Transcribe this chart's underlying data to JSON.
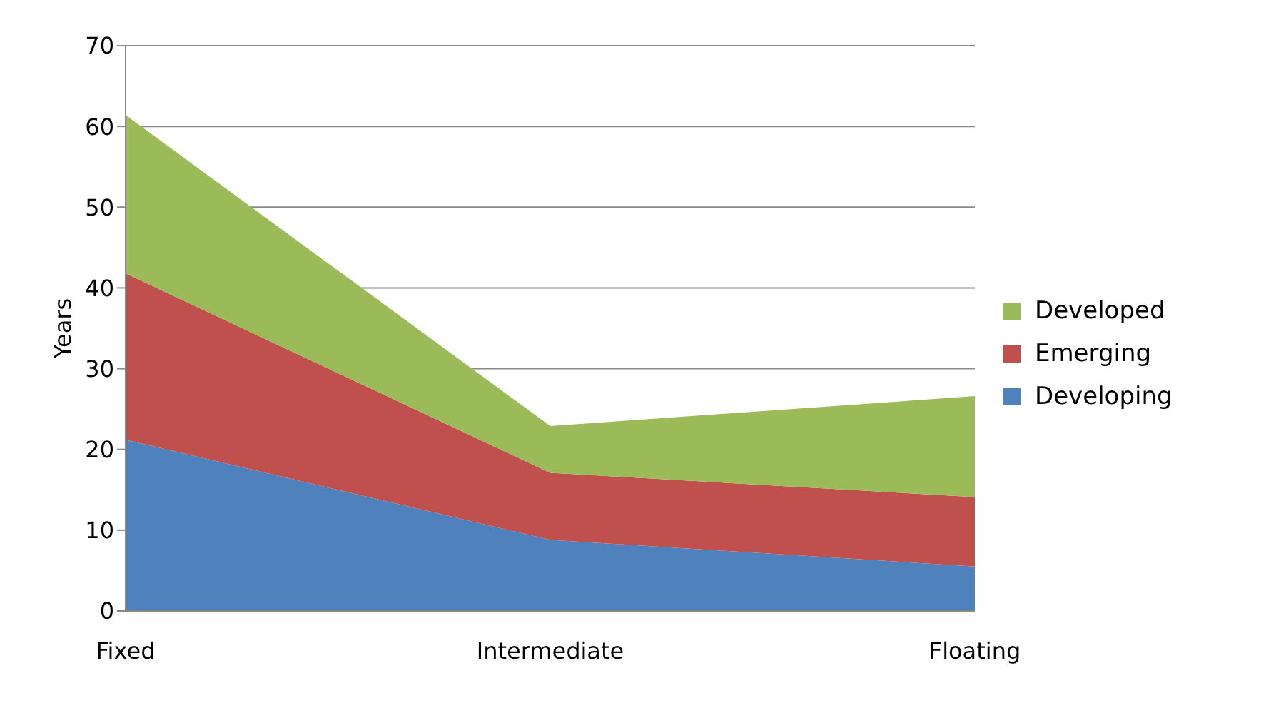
{
  "chart_data": {
    "type": "area",
    "stacked": true,
    "ylabel": "Years",
    "categories": [
      "Fixed",
      "Intermediate",
      "Floating"
    ],
    "series": [
      {
        "name": "Developing",
        "color": "#4f81bd",
        "values": [
          21.2,
          8.8,
          5.5
        ]
      },
      {
        "name": "Emerging",
        "color": "#c0504d",
        "values": [
          20.6,
          8.3,
          8.6
        ]
      },
      {
        "name": "Developed",
        "color": "#9bbb59",
        "values": [
          19.6,
          5.8,
          12.5
        ]
      }
    ],
    "ylim": [
      0,
      70
    ],
    "yticks": [
      0,
      10,
      20,
      30,
      40,
      50,
      60,
      70
    ],
    "grid": "y",
    "legend": "right"
  }
}
